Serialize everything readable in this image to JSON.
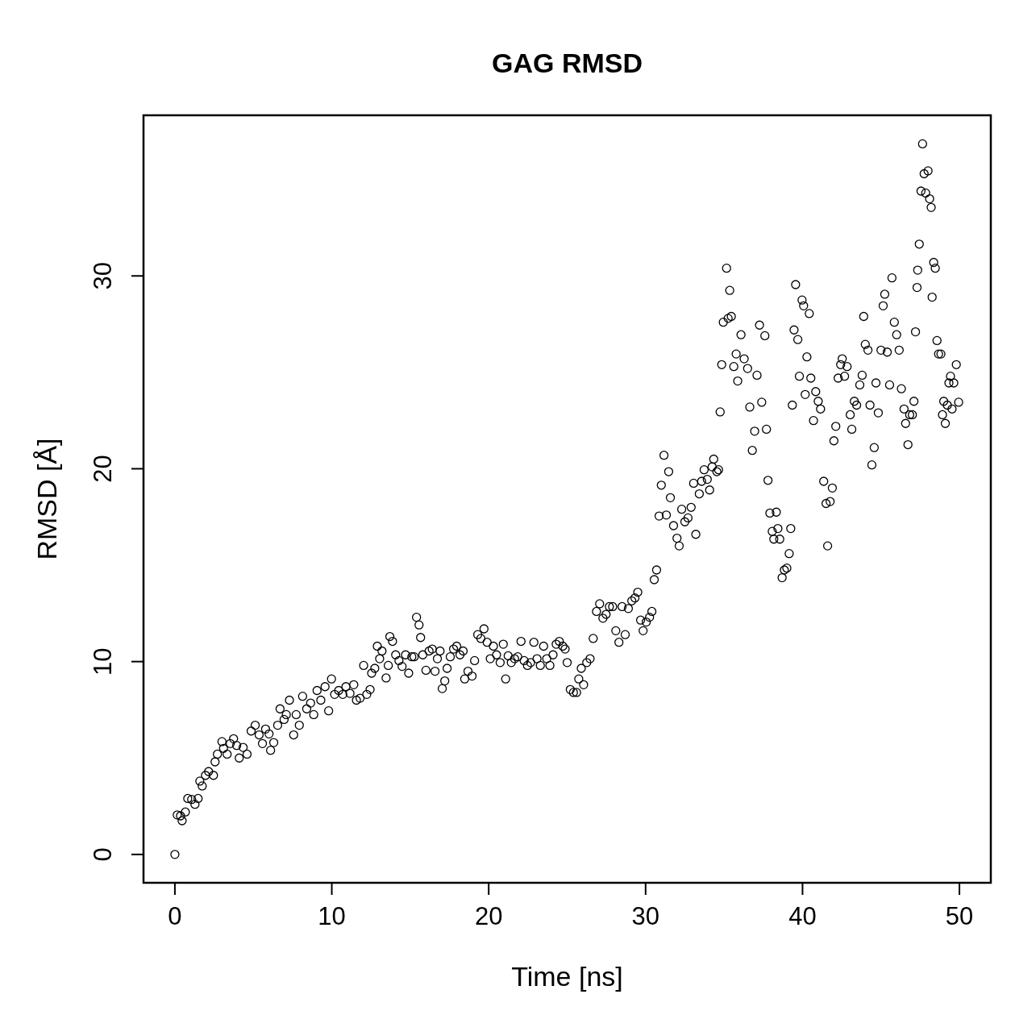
{
  "chart_data": {
    "type": "scatter",
    "title": "GAG RMSD",
    "xlabel": "Time [ns]",
    "ylabel": "RMSD [Å]",
    "marker": "circle",
    "grid": false,
    "color": "#000000",
    "xlim": [
      -2,
      52
    ],
    "ylim": [
      -1.47,
      38.33
    ],
    "xticks": [
      0,
      10,
      20,
      30,
      40,
      50
    ],
    "yticks": [
      0,
      10,
      20,
      30
    ],
    "x": [
      0,
      0.15,
      0.36,
      0.46,
      0.67,
      0.82,
      1.07,
      1.28,
      1.48,
      1.59,
      1.74,
      1.95,
      2.15,
      2.46,
      2.56,
      2.71,
      3.0,
      3.1,
      3.33,
      3.53,
      3.74,
      3.94,
      4.1,
      4.35,
      4.6,
      4.86,
      5.12,
      5.37,
      5.58,
      5.78,
      6.0,
      6.1,
      6.3,
      6.55,
      6.7,
      6.96,
      7.1,
      7.3,
      7.57,
      7.73,
      7.93,
      8.14,
      8.4,
      8.65,
      8.85,
      9.06,
      9.3,
      9.57,
      9.8,
      9.98,
      10.18,
      10.44,
      10.7,
      10.9,
      11.16,
      11.4,
      11.57,
      11.8,
      12.03,
      12.23,
      12.44,
      12.54,
      12.74,
      12.9,
      13.05,
      13.2,
      13.46,
      13.6,
      13.7,
      13.87,
      14.07,
      14.28,
      14.48,
      14.7,
      14.9,
      15.1,
      15.25,
      15.4,
      15.56,
      15.66,
      15.8,
      16.0,
      16.2,
      16.4,
      16.58,
      16.73,
      16.9,
      17.04,
      17.2,
      17.35,
      17.55,
      17.76,
      17.96,
      18.17,
      18.37,
      18.47,
      18.68,
      18.94,
      19.1,
      19.3,
      19.5,
      19.7,
      19.9,
      20.1,
      20.3,
      20.5,
      20.73,
      20.93,
      21.08,
      21.24,
      21.44,
      21.65,
      21.85,
      22.06,
      22.26,
      22.47,
      22.67,
      22.88,
      23.08,
      23.29,
      23.5,
      23.7,
      23.9,
      24.1,
      24.3,
      24.5,
      24.72,
      24.87,
      25.0,
      25.2,
      25.4,
      25.6,
      25.74,
      25.9,
      26.05,
      26.25,
      26.46,
      26.66,
      26.87,
      27.07,
      27.28,
      27.48,
      27.69,
      27.9,
      28.1,
      28.3,
      28.5,
      28.7,
      28.9,
      29.12,
      29.32,
      29.5,
      29.68,
      29.84,
      30.04,
      30.25,
      30.4,
      30.55,
      30.7,
      30.86,
      31.0,
      31.17,
      31.32,
      31.47,
      31.58,
      31.78,
      32.0,
      32.14,
      32.3,
      32.5,
      32.7,
      32.9,
      33.06,
      33.2,
      33.42,
      33.57,
      33.73,
      33.93,
      34.08,
      34.24,
      34.34,
      34.54,
      34.65,
      34.75,
      34.85,
      34.95,
      35.16,
      35.26,
      35.36,
      35.46,
      35.62,
      35.77,
      35.87,
      36.08,
      36.28,
      36.5,
      36.64,
      36.8,
      36.95,
      37.1,
      37.26,
      37.4,
      37.6,
      37.7,
      37.8,
      37.92,
      38.07,
      38.17,
      38.33,
      38.43,
      38.55,
      38.7,
      38.84,
      39.0,
      39.15,
      39.25,
      39.35,
      39.46,
      39.56,
      39.7,
      39.8,
      39.97,
      40.07,
      40.17,
      40.28,
      40.43,
      40.53,
      40.7,
      40.84,
      41.0,
      41.15,
      41.35,
      41.5,
      41.6,
      41.76,
      41.9,
      42.0,
      42.12,
      42.27,
      42.43,
      42.53,
      42.68,
      42.84,
      43.04,
      43.14,
      43.3,
      43.45,
      43.65,
      43.8,
      43.9,
      44.0,
      44.17,
      44.3,
      44.42,
      44.57,
      44.68,
      44.83,
      45.0,
      45.14,
      45.24,
      45.4,
      45.55,
      45.7,
      45.85,
      46.0,
      46.16,
      46.3,
      46.47,
      46.57,
      46.72,
      46.83,
      47.0,
      47.1,
      47.2,
      47.3,
      47.34,
      47.44,
      47.55,
      47.65,
      47.75,
      47.85,
      48.0,
      48.1,
      48.2,
      48.26,
      48.36,
      48.46,
      48.57,
      48.67,
      48.82,
      48.92,
      49.0,
      49.1,
      49.23,
      49.33,
      49.43,
      49.53,
      49.64,
      49.8,
      49.95
    ],
    "values": [
      0,
      2.05,
      2.0,
      1.75,
      2.2,
      2.9,
      2.85,
      2.6,
      2.9,
      3.8,
      3.55,
      4.1,
      4.3,
      4.1,
      4.8,
      5.2,
      5.85,
      5.5,
      5.2,
      5.75,
      6.0,
      5.65,
      5.0,
      5.55,
      5.2,
      6.4,
      6.7,
      6.2,
      5.75,
      6.5,
      6.25,
      5.4,
      5.8,
      6.7,
      7.55,
      7.0,
      7.25,
      8.0,
      6.2,
      7.25,
      6.7,
      8.2,
      7.55,
      7.85,
      7.25,
      8.5,
      8.0,
      8.7,
      7.45,
      9.1,
      8.3,
      8.5,
      8.3,
      8.7,
      8.35,
      8.8,
      8.0,
      8.1,
      9.8,
      8.3,
      8.55,
      9.4,
      9.65,
      10.8,
      10.15,
      10.55,
      9.15,
      9.8,
      11.3,
      11.05,
      10.35,
      10.05,
      9.75,
      10.35,
      9.4,
      10.25,
      10.25,
      12.3,
      11.9,
      11.25,
      10.35,
      9.55,
      10.55,
      10.65,
      9.5,
      10.15,
      10.55,
      8.6,
      9.0,
      9.65,
      10.25,
      10.65,
      10.8,
      10.35,
      10.55,
      9.1,
      9.5,
      9.25,
      10.05,
      11.4,
      11.2,
      11.7,
      11.0,
      10.15,
      10.8,
      10.35,
      9.95,
      10.9,
      9.1,
      10.3,
      9.95,
      10.15,
      10.25,
      11.05,
      10.05,
      9.8,
      9.95,
      11.0,
      10.15,
      9.8,
      10.8,
      10.15,
      9.8,
      10.35,
      10.9,
      11.05,
      10.8,
      10.65,
      9.95,
      8.55,
      8.4,
      8.4,
      9.1,
      9.65,
      8.8,
      9.95,
      10.15,
      11.2,
      12.6,
      13.0,
      12.25,
      12.45,
      12.85,
      12.85,
      11.6,
      11.0,
      12.85,
      11.4,
      12.75,
      13.15,
      13.3,
      13.6,
      12.15,
      11.6,
      12.05,
      12.3,
      12.6,
      14.25,
      14.75,
      17.55,
      19.15,
      20.7,
      17.6,
      19.85,
      18.5,
      17.05,
      16.4,
      16.0,
      17.9,
      17.25,
      17.45,
      18.0,
      19.25,
      16.6,
      18.7,
      19.35,
      19.95,
      19.45,
      18.9,
      20.1,
      20.5,
      19.85,
      19.95,
      22.95,
      25.4,
      27.6,
      30.4,
      27.8,
      29.25,
      27.9,
      25.3,
      25.95,
      24.55,
      26.95,
      25.7,
      25.2,
      23.2,
      20.95,
      21.95,
      24.85,
      27.45,
      23.45,
      26.9,
      22.05,
      19.4,
      17.7,
      16.75,
      16.35,
      17.75,
      16.9,
      16.35,
      14.35,
      14.75,
      14.85,
      15.6,
      16.9,
      23.3,
      27.2,
      29.55,
      26.7,
      24.8,
      28.75,
      28.45,
      23.85,
      25.8,
      28.05,
      24.7,
      22.5,
      24.0,
      23.5,
      23.1,
      19.35,
      18.2,
      16.0,
      18.3,
      19.0,
      21.45,
      22.2,
      24.7,
      25.4,
      25.7,
      24.8,
      25.3,
      22.8,
      22.05,
      23.5,
      23.3,
      24.35,
      24.85,
      27.9,
      26.45,
      26.15,
      23.3,
      20.2,
      21.1,
      24.45,
      22.9,
      26.15,
      28.45,
      29.05,
      26.05,
      24.35,
      29.9,
      27.6,
      26.95,
      26.15,
      24.15,
      23.1,
      22.35,
      21.25,
      22.8,
      22.8,
      23.5,
      27.1,
      29.4,
      30.3,
      31.65,
      34.4,
      36.85,
      35.3,
      34.3,
      35.45,
      34.0,
      33.55,
      28.9,
      30.7,
      30.4,
      26.65,
      25.95,
      25.95,
      22.8,
      23.5,
      22.35,
      23.3,
      24.45,
      24.8,
      23.1,
      24.45,
      25.4,
      23.45
    ]
  }
}
